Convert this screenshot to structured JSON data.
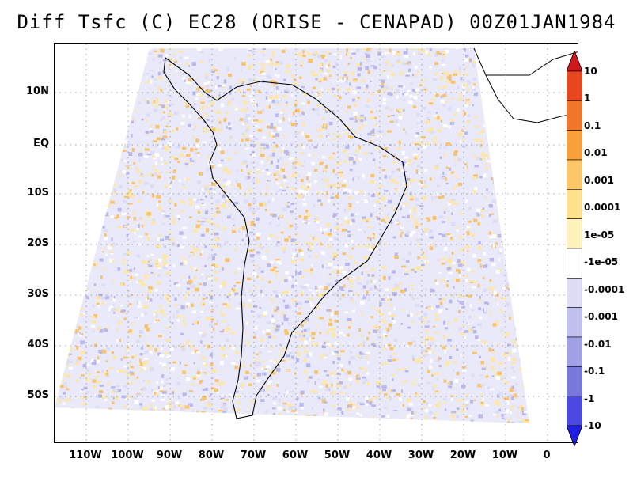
{
  "title": "Diff Tsfc (C) EC28 (ORISE - CENAPAD) 00Z01JAN1984",
  "map": {
    "lat_labels": [
      "10N",
      "EQ",
      "10S",
      "20S",
      "30S",
      "40S",
      "50S"
    ],
    "lon_labels": [
      "110W",
      "100W",
      "90W",
      "80W",
      "70W",
      "60W",
      "50W",
      "40W",
      "30W",
      "20W",
      "10W",
      "0"
    ],
    "grid": true,
    "region": "South America"
  },
  "colorbar": {
    "labels": [
      "10",
      "1",
      "0.1",
      "0.01",
      "0.001",
      "0.0001",
      "1e-05",
      "-1e-05",
      "-0.0001",
      "-0.001",
      "-0.01",
      "-0.1",
      "-1",
      "-10"
    ],
    "colors": [
      "#d0181c",
      "#e8461f",
      "#f2762a",
      "#f8a13b",
      "#fcc565",
      "#fde28e",
      "#fff2bd",
      "#ffffff",
      "#dcdcf7",
      "#c0c0ef",
      "#a0a0e6",
      "#7878dc",
      "#4a4ae0",
      "#1e1ee8"
    ]
  },
  "colors": {
    "positive_weak": "#fde7a6",
    "positive_mid": "#f9c36a",
    "negative_weak": "#dcdcf7",
    "negative_mid": "#b8b8ec",
    "coastline": "#000000"
  }
}
